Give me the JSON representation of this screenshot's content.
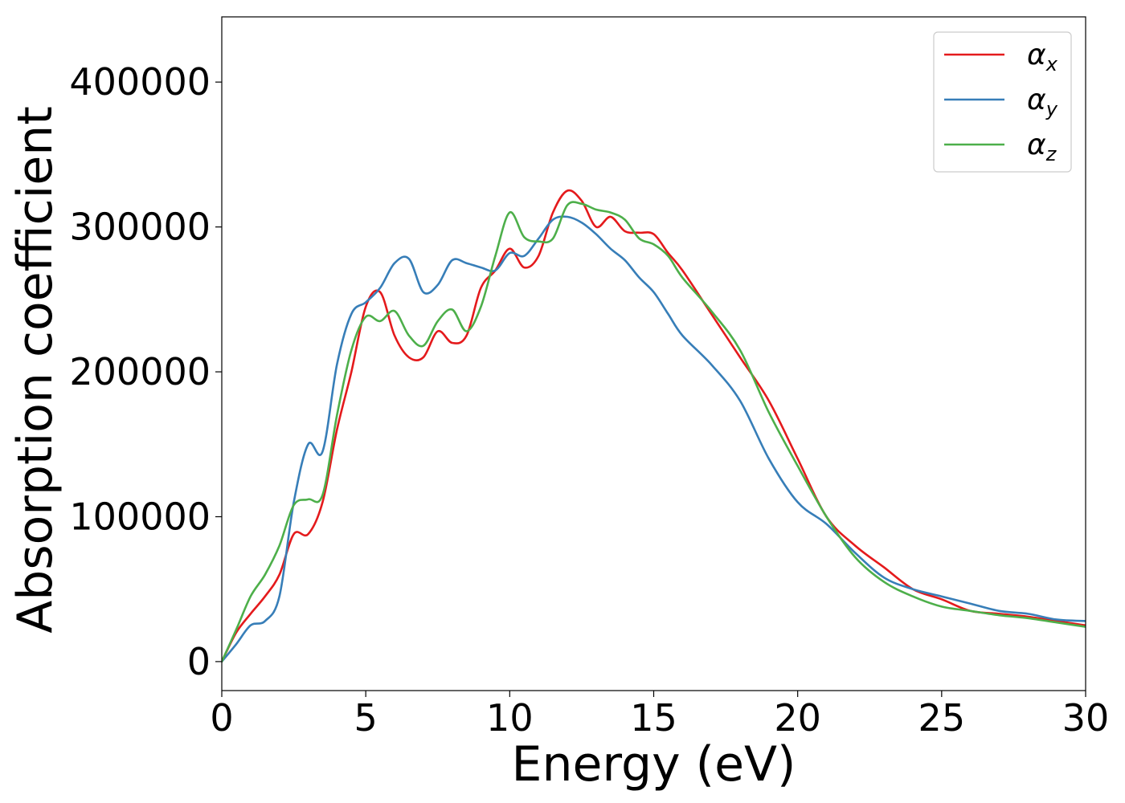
{
  "chart_data": {
    "type": "line",
    "title": "",
    "xlabel": "Energy (eV)",
    "ylabel": "Absorption coefficient",
    "xlim": [
      0,
      30
    ],
    "ylim": [
      -20000,
      445000
    ],
    "xticks": [
      0,
      5,
      10,
      15,
      20,
      25,
      30
    ],
    "yticks": [
      0,
      100000,
      200000,
      300000,
      400000
    ],
    "grid": false,
    "legend_position": "top-right",
    "series": [
      {
        "name": "α_x",
        "symbol": "α",
        "subscript": "x",
        "color": "#e41a1c",
        "x": [
          0,
          0.5,
          1,
          1.5,
          2,
          2.5,
          3,
          3.5,
          4,
          4.5,
          5,
          5.5,
          6,
          6.5,
          7,
          7.5,
          8,
          8.5,
          9,
          9.5,
          10,
          10.5,
          11,
          11.5,
          12,
          12.5,
          13,
          13.5,
          14,
          14.5,
          15,
          15.5,
          16,
          17,
          18,
          19,
          20,
          21,
          22,
          23,
          24,
          25,
          26,
          27,
          28,
          29,
          30
        ],
        "values": [
          0,
          20000,
          33000,
          45000,
          60000,
          88000,
          88000,
          110000,
          160000,
          200000,
          245000,
          255000,
          225000,
          210000,
          210000,
          228000,
          220000,
          225000,
          258000,
          270000,
          285000,
          272000,
          280000,
          310000,
          325000,
          318000,
          300000,
          307000,
          297000,
          296000,
          295000,
          282000,
          270000,
          240000,
          210000,
          180000,
          140000,
          100000,
          80000,
          65000,
          50000,
          43000,
          35000,
          33000,
          31000,
          28000,
          25000
        ]
      },
      {
        "name": "α_y",
        "symbol": "α",
        "subscript": "y",
        "color": "#377eb8",
        "x": [
          0,
          0.5,
          1,
          1.5,
          2,
          2.5,
          3,
          3.5,
          4,
          4.5,
          5,
          5.5,
          6,
          6.5,
          7,
          7.5,
          8,
          8.5,
          9,
          9.5,
          10,
          10.5,
          11,
          11.5,
          12,
          12.5,
          13,
          13.5,
          14,
          14.5,
          15,
          15.5,
          16,
          17,
          18,
          19,
          20,
          21,
          22,
          23,
          24,
          25,
          26,
          27,
          28,
          29,
          30
        ],
        "values": [
          0,
          12000,
          25000,
          28000,
          45000,
          110000,
          150000,
          145000,
          205000,
          240000,
          248000,
          258000,
          275000,
          278000,
          255000,
          260000,
          277000,
          275000,
          272000,
          270000,
          282000,
          280000,
          292000,
          305000,
          307000,
          303000,
          295000,
          285000,
          277000,
          265000,
          255000,
          240000,
          225000,
          205000,
          180000,
          140000,
          110000,
          95000,
          75000,
          58000,
          50000,
          45000,
          40000,
          35000,
          33000,
          29000,
          28000
        ]
      },
      {
        "name": "α_z",
        "symbol": "α",
        "subscript": "z",
        "color": "#4daf4a",
        "x": [
          0,
          0.5,
          1,
          1.5,
          2,
          2.5,
          3,
          3.5,
          4,
          4.5,
          5,
          5.5,
          6,
          6.5,
          7,
          7.5,
          8,
          8.5,
          9,
          9.5,
          10,
          10.5,
          11,
          11.5,
          12,
          12.5,
          13,
          13.5,
          14,
          14.5,
          15,
          15.5,
          16,
          17,
          18,
          19,
          20,
          21,
          22,
          23,
          24,
          25,
          26,
          27,
          28,
          29,
          30
        ],
        "values": [
          0,
          22000,
          45000,
          60000,
          80000,
          108000,
          112000,
          115000,
          170000,
          215000,
          238000,
          235000,
          242000,
          225000,
          218000,
          235000,
          243000,
          228000,
          245000,
          280000,
          310000,
          293000,
          290000,
          292000,
          315000,
          316000,
          312000,
          310000,
          305000,
          292000,
          288000,
          280000,
          265000,
          242000,
          215000,
          172000,
          135000,
          100000,
          72000,
          55000,
          45000,
          38000,
          35000,
          32000,
          30000,
          27000,
          24000
        ]
      }
    ]
  }
}
